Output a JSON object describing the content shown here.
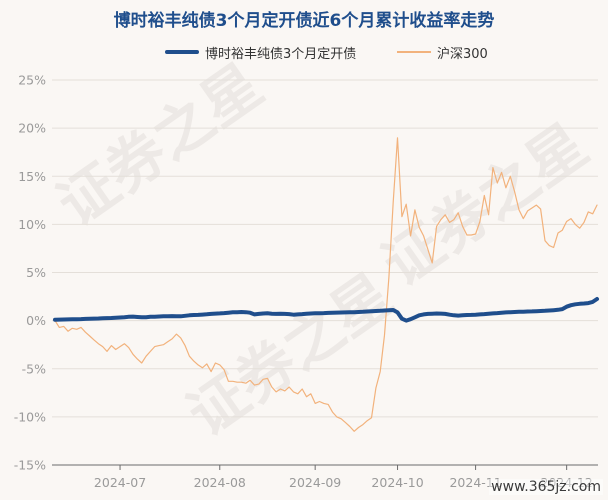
{
  "colors": {
    "background": "#faf7f4",
    "title": "#1f4e8c"
  },
  "watermarks": {
    "brand": "证券之星",
    "site": "www.365jz.com"
  },
  "chart_data": {
    "type": "line",
    "title": "博时裕丰纯债3个月定开债近6个月累计收益率走势",
    "ylim": [
      -15,
      25
    ],
    "yticks": [
      25,
      20,
      15,
      10,
      5,
      0,
      -5,
      -10,
      -15
    ],
    "ytick_labels": [
      "25%",
      "20%",
      "15%",
      "10%",
      "5%",
      "0%",
      "-5%",
      "-10%",
      "-15%"
    ],
    "xtick_labels": [
      "2024-07",
      "2024-08",
      "2024-09",
      "2024-10",
      "2024-11",
      "2024-12"
    ],
    "grid": "horizontal",
    "legend": "top-center",
    "x": [
      "2024-06-07",
      "2024-06-11",
      "2024-06-12",
      "2024-06-13",
      "2024-06-14",
      "2024-06-17",
      "2024-06-18",
      "2024-06-19",
      "2024-06-20",
      "2024-06-21",
      "2024-06-24",
      "2024-06-25",
      "2024-06-26",
      "2024-06-27",
      "2024-06-28",
      "2024-07-01",
      "2024-07-02",
      "2024-07-03",
      "2024-07-04",
      "2024-07-05",
      "2024-07-08",
      "2024-07-09",
      "2024-07-10",
      "2024-07-11",
      "2024-07-12",
      "2024-07-15",
      "2024-07-16",
      "2024-07-17",
      "2024-07-18",
      "2024-07-19",
      "2024-07-22",
      "2024-07-23",
      "2024-07-24",
      "2024-07-25",
      "2024-07-26",
      "2024-07-29",
      "2024-07-30",
      "2024-07-31",
      "2024-08-01",
      "2024-08-02",
      "2024-08-05",
      "2024-08-06",
      "2024-08-07",
      "2024-08-08",
      "2024-08-09",
      "2024-08-12",
      "2024-08-13",
      "2024-08-14",
      "2024-08-15",
      "2024-08-16",
      "2024-08-19",
      "2024-08-20",
      "2024-08-21",
      "2024-08-22",
      "2024-08-23",
      "2024-08-26",
      "2024-08-27",
      "2024-08-28",
      "2024-08-29",
      "2024-08-30",
      "2024-09-02",
      "2024-09-03",
      "2024-09-04",
      "2024-09-05",
      "2024-09-06",
      "2024-09-09",
      "2024-09-10",
      "2024-09-11",
      "2024-09-12",
      "2024-09-13",
      "2024-09-18",
      "2024-09-19",
      "2024-09-20",
      "2024-09-23",
      "2024-09-24",
      "2024-09-25",
      "2024-09-26",
      "2024-09-27",
      "2024-09-30",
      "2024-10-08",
      "2024-10-09",
      "2024-10-10",
      "2024-10-11",
      "2024-10-14",
      "2024-10-15",
      "2024-10-16",
      "2024-10-17",
      "2024-10-18",
      "2024-10-21",
      "2024-10-22",
      "2024-10-23",
      "2024-10-24",
      "2024-10-25",
      "2024-10-28",
      "2024-10-29",
      "2024-10-30",
      "2024-10-31",
      "2024-11-01",
      "2024-11-04",
      "2024-11-05",
      "2024-11-06",
      "2024-11-07",
      "2024-11-08",
      "2024-11-11",
      "2024-11-12",
      "2024-11-13",
      "2024-11-14",
      "2024-11-15",
      "2024-11-18",
      "2024-11-19",
      "2024-11-20",
      "2024-11-21",
      "2024-11-22",
      "2024-11-25",
      "2024-11-26",
      "2024-11-27",
      "2024-11-28",
      "2024-11-29",
      "2024-12-02",
      "2024-12-03",
      "2024-12-04",
      "2024-12-05",
      "2024-12-06",
      "2024-12-09",
      "2024-12-10",
      "2024-12-11"
    ],
    "series": [
      {
        "name": "博时裕丰纯债3个月定开债",
        "color": "#1f4e8c",
        "values": [
          0.1,
          0.11,
          0.12,
          0.13,
          0.14,
          0.15,
          0.16,
          0.18,
          0.2,
          0.21,
          0.22,
          0.24,
          0.26,
          0.27,
          0.3,
          0.32,
          0.36,
          0.4,
          0.42,
          0.38,
          0.35,
          0.36,
          0.4,
          0.41,
          0.43,
          0.45,
          0.46,
          0.47,
          0.46,
          0.45,
          0.5,
          0.55,
          0.58,
          0.6,
          0.63,
          0.66,
          0.7,
          0.73,
          0.75,
          0.78,
          0.82,
          0.86,
          0.88,
          0.9,
          0.88,
          0.82,
          0.65,
          0.7,
          0.74,
          0.76,
          0.72,
          0.7,
          0.72,
          0.7,
          0.68,
          0.62,
          0.65,
          0.68,
          0.72,
          0.74,
          0.76,
          0.77,
          0.78,
          0.8,
          0.82,
          0.83,
          0.84,
          0.85,
          0.87,
          0.88,
          0.9,
          0.92,
          0.95,
          0.97,
          1.0,
          1.02,
          1.05,
          1.08,
          1.1,
          0.85,
          0.2,
          0.0,
          0.15,
          0.35,
          0.55,
          0.65,
          0.7,
          0.72,
          0.74,
          0.73,
          0.7,
          0.62,
          0.55,
          0.52,
          0.55,
          0.58,
          0.6,
          0.62,
          0.65,
          0.68,
          0.72,
          0.75,
          0.78,
          0.82,
          0.85,
          0.88,
          0.9,
          0.92,
          0.93,
          0.95,
          0.96,
          0.98,
          1.0,
          1.02,
          1.05,
          1.08,
          1.12,
          1.2,
          1.45,
          1.6,
          1.7,
          1.75,
          1.78,
          1.82,
          1.95,
          2.25
        ]
      },
      {
        "name": "沪深300",
        "color": "#f2b27c",
        "values": [
          0.0,
          -0.7,
          -0.6,
          -1.1,
          -0.8,
          -0.9,
          -0.7,
          -1.2,
          -1.6,
          -2.0,
          -2.4,
          -2.7,
          -3.2,
          -2.6,
          -3.0,
          -2.7,
          -2.4,
          -2.8,
          -3.5,
          -4.0,
          -4.4,
          -3.7,
          -3.2,
          -2.7,
          -2.6,
          -2.5,
          -2.2,
          -1.9,
          -1.4,
          -1.8,
          -2.6,
          -3.7,
          -4.2,
          -4.6,
          -4.9,
          -4.5,
          -5.3,
          -4.4,
          -4.6,
          -5.1,
          -6.3,
          -6.3,
          -6.4,
          -6.4,
          -6.5,
          -6.2,
          -6.7,
          -6.6,
          -6.1,
          -6.0,
          -6.9,
          -7.4,
          -7.1,
          -7.3,
          -6.9,
          -7.4,
          -7.6,
          -7.1,
          -7.9,
          -7.6,
          -8.6,
          -8.4,
          -8.6,
          -8.7,
          -9.5,
          -10.0,
          -10.2,
          -10.6,
          -11.0,
          -11.5,
          -11.1,
          -10.8,
          -10.4,
          -10.1,
          -7.0,
          -5.3,
          -1.5,
          4.5,
          12.3,
          19.0,
          10.8,
          12.1,
          8.8,
          11.5,
          9.7,
          8.8,
          7.4,
          6.0,
          9.8,
          10.5,
          11.0,
          10.2,
          10.5,
          11.2,
          9.8,
          8.9,
          8.9,
          9.0,
          10.3,
          13.0,
          11.0,
          15.9,
          14.3,
          15.4,
          13.8,
          15.0,
          13.4,
          11.5,
          10.6,
          11.4,
          11.7,
          12.0,
          11.6,
          8.3,
          7.8,
          7.6,
          9.1,
          9.4,
          10.3,
          10.6,
          10.0,
          9.6,
          10.2,
          11.3,
          11.1,
          12.0
        ]
      }
    ]
  }
}
